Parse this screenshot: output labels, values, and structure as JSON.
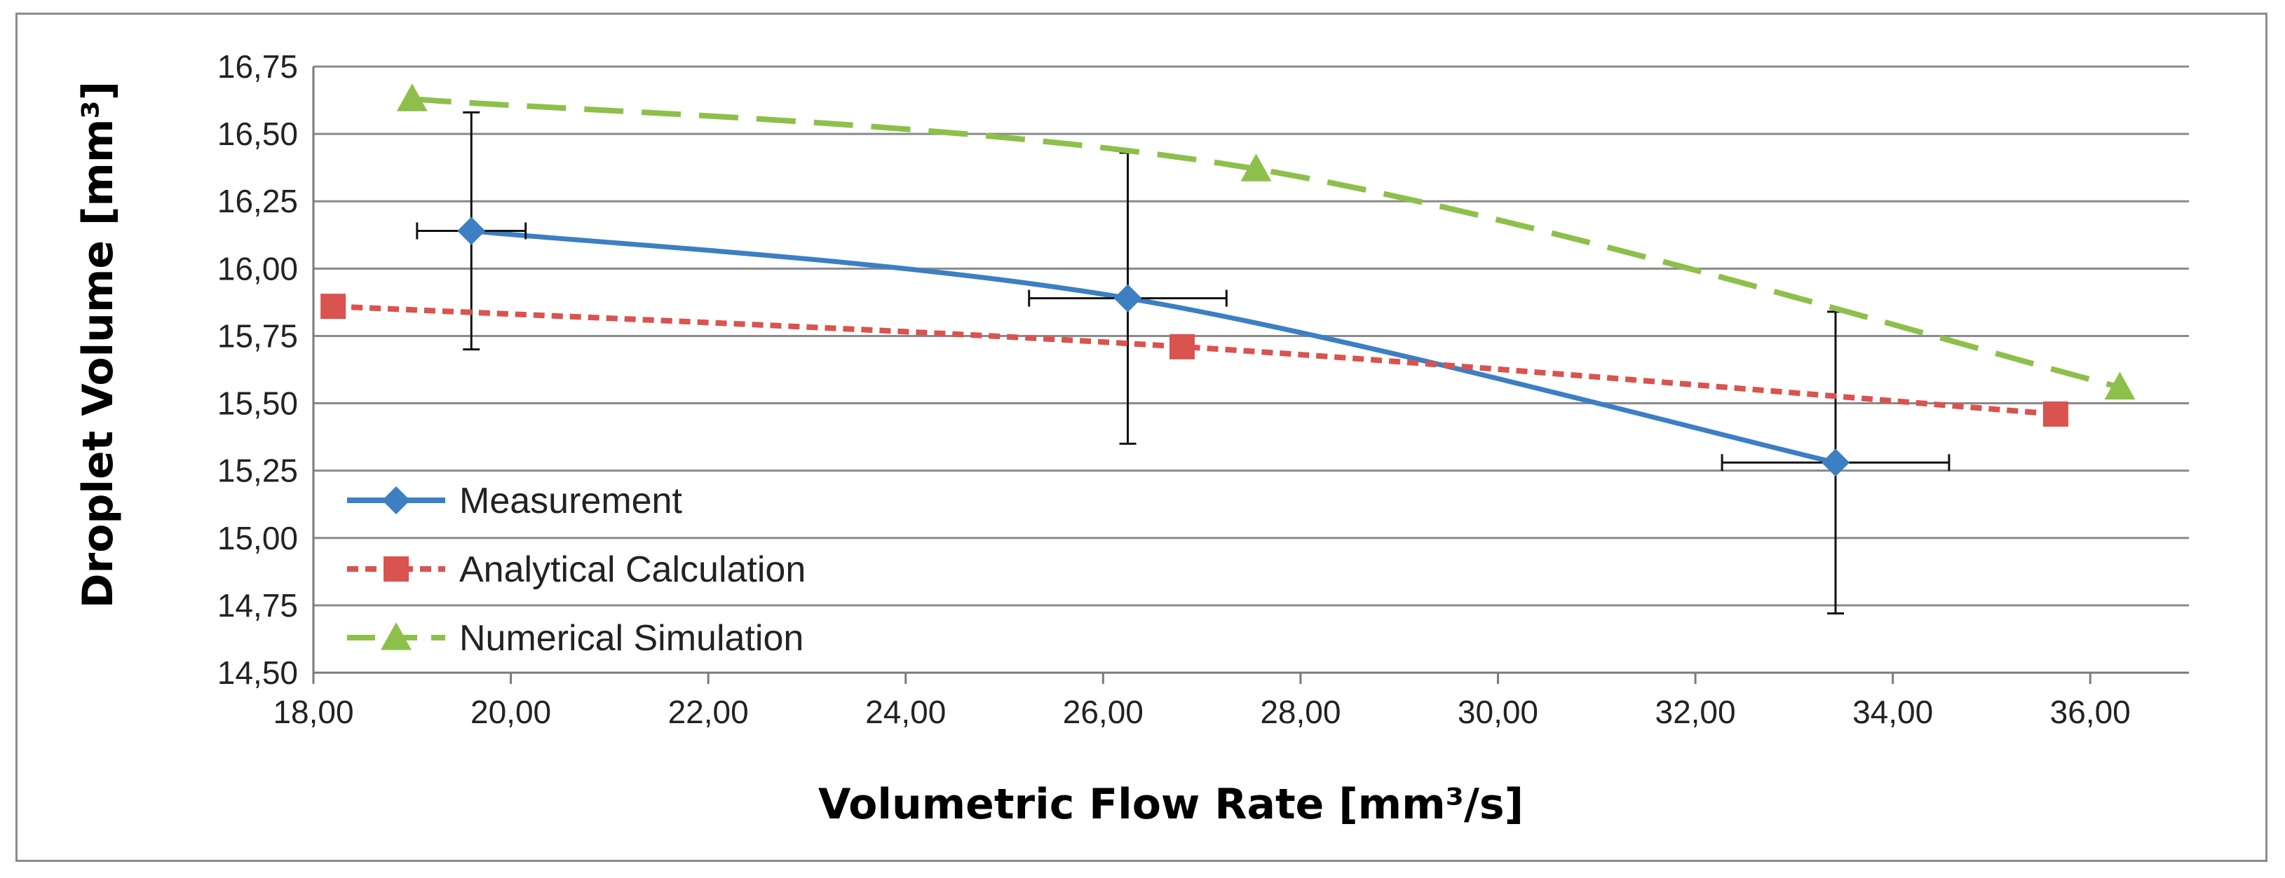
{
  "chart_data": {
    "type": "line",
    "title": "",
    "xlabel": "Volumetric Flow Rate [mm³/s]",
    "ylabel": "Droplet Volume [mm³]",
    "xlim": [
      18,
      37
    ],
    "ylim": [
      14.5,
      16.75
    ],
    "x_ticks": [
      "18,00",
      "20,00",
      "22,00",
      "24,00",
      "26,00",
      "28,00",
      "30,00",
      "32,00",
      "34,00",
      "36,00"
    ],
    "y_ticks": [
      "14,50",
      "14,75",
      "15,00",
      "15,25",
      "15,50",
      "15,75",
      "16,00",
      "16,25",
      "16,50",
      "16,75"
    ],
    "grid": "horizontal",
    "legend_position": "bottom-left",
    "series": [
      {
        "name": "Measurement",
        "color": "#3c7fc2",
        "line_style": "solid",
        "marker": "diamond",
        "x": [
          19.6,
          26.25,
          33.42
        ],
        "y": [
          16.14,
          15.89,
          15.28
        ],
        "x_error": [
          0.55,
          1.0,
          1.15
        ],
        "y_error": [
          0.44,
          0.54,
          0.56
        ]
      },
      {
        "name": "Analytical Calculation",
        "color": "#d9534f",
        "line_style": "dotted",
        "marker": "square",
        "x": [
          18.2,
          26.8,
          35.65
        ],
        "y": [
          15.86,
          15.71,
          15.46
        ]
      },
      {
        "name": "Numerical Simulation",
        "color": "#8dc04a",
        "line_style": "dashed",
        "marker": "triangle",
        "x": [
          19.0,
          27.55,
          36.3
        ],
        "y": [
          16.63,
          16.37,
          15.56
        ]
      }
    ]
  }
}
